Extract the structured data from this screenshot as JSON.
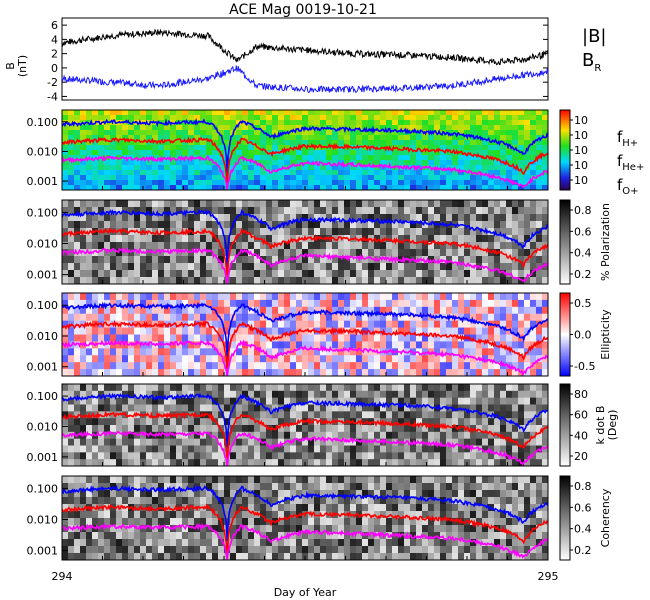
{
  "title": "ACE Mag 0019-10-21",
  "xlabel": "Day of Year",
  "x_ticks": [
    "294",
    "295"
  ],
  "colors": {
    "bmag": "#000000",
    "br": "#1a1aff",
    "fH": "#0000ff",
    "fHe": "#ff0000",
    "fO": "#ff00ff"
  },
  "panels": {
    "b": {
      "ylabel": "B",
      "yunit": "(nT)",
      "yticks": [
        "6",
        "4",
        "2",
        "0",
        "-2",
        "-4"
      ],
      "legend_bmag": "|B|",
      "legend_br": "B",
      "legend_br_sub": "R"
    },
    "spec": {
      "yticks": [
        "0.100",
        "0.010",
        "0.001"
      ],
      "cbar_ticks": [
        "10",
        "10",
        "10",
        "10",
        "10"
      ],
      "legend": {
        "fH": "f",
        "fH_sub": "H+",
        "fHe": "f",
        "fHe_sub": "He+",
        "fO": "f",
        "fO_sub": "O+"
      }
    },
    "pol": {
      "yticks": [
        "0.100",
        "0.010",
        "0.001"
      ],
      "cbar_label": "% Polarization",
      "cbar_ticks": [
        "0.8",
        "0.6",
        "0.4",
        "0.2"
      ]
    },
    "ell": {
      "yticks": [
        "0.100",
        "0.010",
        "0.001"
      ],
      "cbar_label": "Ellipticity",
      "cbar_ticks": [
        "0.5",
        "0.0",
        "-0.5"
      ]
    },
    "kdb": {
      "yticks": [
        "0.100",
        "0.010",
        "0.001"
      ],
      "cbar_label": "k dot B",
      "cbar_label2": "(Deg)",
      "cbar_ticks": [
        "80",
        "60",
        "40",
        "20"
      ]
    },
    "coh": {
      "yticks": [
        "0.100",
        "0.010",
        "0.001"
      ],
      "cbar_label": "Coherency",
      "cbar_ticks": [
        "0.8",
        "0.6",
        "0.4",
        "0.2"
      ]
    }
  },
  "chart_data": {
    "type": "line",
    "title": "ACE Mag 0019-10-21",
    "xlabel": "Day of Year",
    "xlim": [
      294,
      295
    ],
    "panels": [
      {
        "name": "B",
        "ylabel": "B (nT)",
        "ylim": [
          -4.5,
          7
        ],
        "x": [
          294.0,
          294.1,
          294.2,
          294.3,
          294.36,
          294.4,
          294.5,
          294.6,
          294.7,
          294.8,
          294.9,
          294.95,
          295.0
        ],
        "series": [
          {
            "name": "|B|",
            "values": [
              3.5,
              4.5,
              5.0,
              4.5,
              1.0,
              3.0,
              2.5,
              2.0,
              1.8,
              1.5,
              0.8,
              1.2,
              2.0
            ]
          },
          {
            "name": "BR",
            "values": [
              -1.5,
              -2.0,
              -2.5,
              -1.5,
              0.0,
              -2.5,
              -3.0,
              -3.0,
              -2.8,
              -2.5,
              -1.5,
              -1.0,
              -0.5
            ]
          }
        ]
      },
      {
        "name": "frequency",
        "yscale": "log",
        "ylim": [
          0.0005,
          0.25
        ],
        "x": [
          294.0,
          294.1,
          294.2,
          294.3,
          294.34,
          294.37,
          294.4,
          294.43,
          294.5,
          294.6,
          294.7,
          294.8,
          294.9,
          294.95,
          295.0
        ],
        "series": [
          {
            "name": "fH+",
            "values": [
              0.08,
              0.1,
              0.09,
              0.1,
              0.002,
              0.1,
              0.06,
              0.03,
              0.06,
              0.055,
              0.05,
              0.04,
              0.02,
              0.008,
              0.035
            ]
          },
          {
            "name": "fHe+",
            "values": [
              0.02,
              0.025,
              0.022,
              0.025,
              0.0006,
              0.025,
              0.015,
              0.008,
              0.015,
              0.014,
              0.012,
              0.01,
              0.005,
              0.002,
              0.009
            ]
          },
          {
            "name": "fO+",
            "values": [
              0.005,
              0.006,
              0.0055,
              0.006,
              0.0005,
              0.006,
              0.004,
              0.002,
              0.004,
              0.0035,
              0.003,
              0.0025,
              0.0013,
              0.0006,
              0.0022
            ]
          }
        ]
      }
    ]
  }
}
